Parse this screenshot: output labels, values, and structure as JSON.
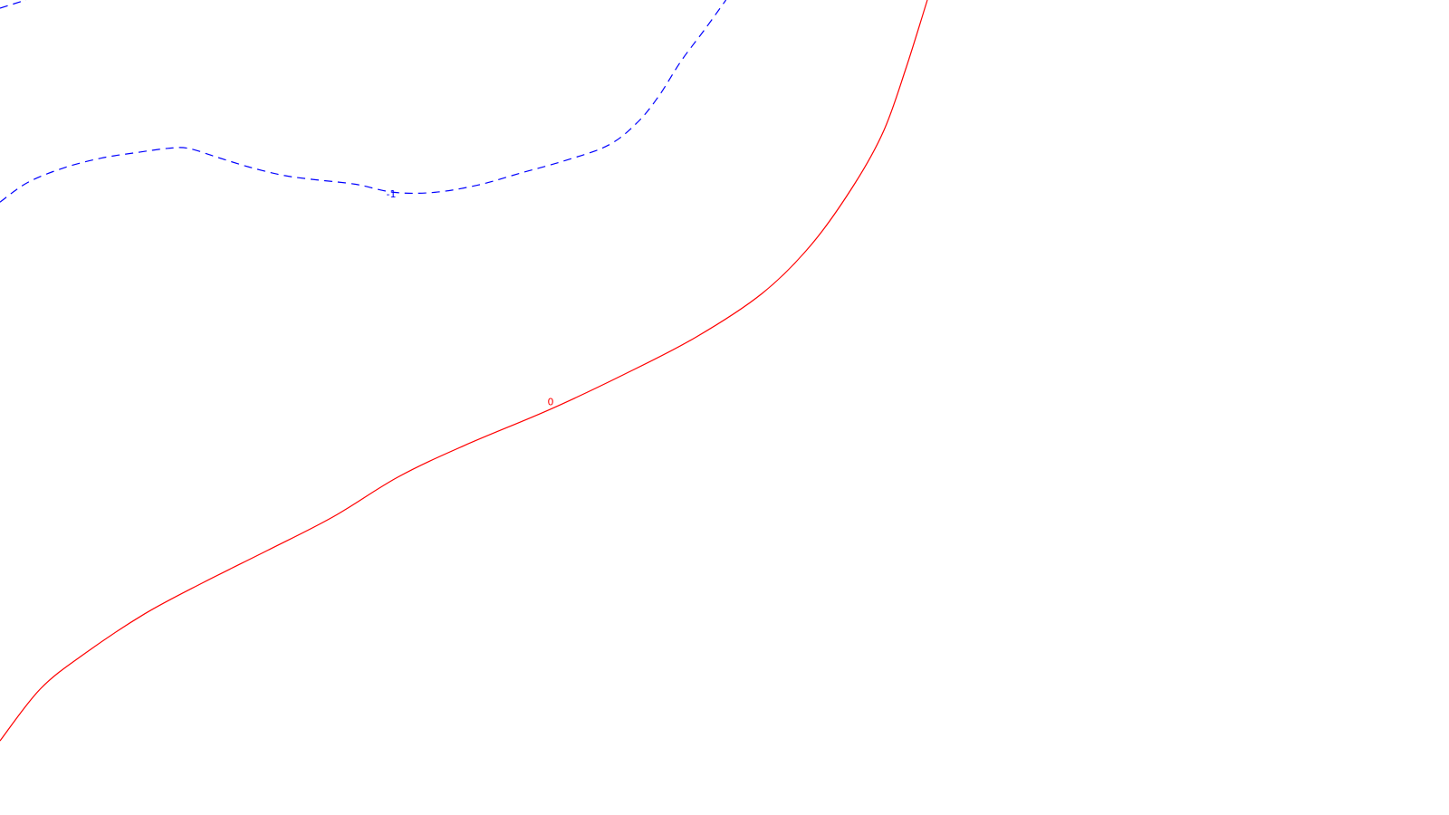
{
  "chart_data": {
    "type": "contour",
    "title": "",
    "xlabel": "",
    "ylabel": "",
    "grid": false,
    "legend": "none",
    "levels": [
      {
        "level": "-1",
        "label": "-1",
        "color": "#0000ff",
        "style": "dashed",
        "path": [
          [
            0,
            0.752
          ],
          [
            0.019,
            0.776
          ],
          [
            0.044,
            0.794
          ],
          [
            0.07,
            0.806
          ],
          [
            0.095,
            0.813
          ],
          [
            0.116,
            0.818
          ],
          [
            0.13,
            0.818
          ],
          [
            0.15,
            0.807
          ],
          [
            0.172,
            0.795
          ],
          [
            0.195,
            0.785
          ],
          [
            0.215,
            0.78
          ],
          [
            0.245,
            0.774
          ],
          [
            0.272,
            0.764
          ],
          [
            0.3,
            0.764
          ],
          [
            0.33,
            0.773
          ],
          [
            0.36,
            0.788
          ],
          [
            0.39,
            0.803
          ],
          [
            0.42,
            0.822
          ],
          [
            0.44,
            0.85
          ],
          [
            0.455,
            0.883
          ],
          [
            0.47,
            0.925
          ],
          [
            0.486,
            0.963
          ],
          [
            0.501,
            1.0
          ]
        ],
        "label_at": [
          0.27,
          0.762
        ]
      },
      {
        "level": "-1",
        "label": "",
        "color": "#0000ff",
        "style": "dashed",
        "path": [
          [
            0,
            0.99
          ],
          [
            0.018,
            1.0
          ]
        ]
      },
      {
        "level": "0",
        "label": "0",
        "color": "#ff0000",
        "style": "solid",
        "path": [
          [
            0,
            0.091
          ],
          [
            0.028,
            0.155
          ],
          [
            0.06,
            0.2
          ],
          [
            0.1,
            0.247
          ],
          [
            0.14,
            0.285
          ],
          [
            0.185,
            0.325
          ],
          [
            0.23,
            0.366
          ],
          [
            0.275,
            0.415
          ],
          [
            0.32,
            0.453
          ],
          [
            0.38,
            0.498
          ],
          [
            0.43,
            0.54
          ],
          [
            0.48,
            0.586
          ],
          [
            0.526,
            0.64
          ],
          [
            0.56,
            0.7
          ],
          [
            0.59,
            0.775
          ],
          [
            0.61,
            0.84
          ],
          [
            0.625,
            0.915
          ],
          [
            0.64,
            1.0
          ]
        ],
        "label_at": [
          0.38,
          0.507
        ]
      }
    ]
  }
}
